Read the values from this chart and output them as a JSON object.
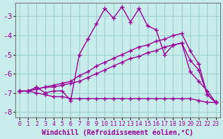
{
  "title": "",
  "xlabel": "Windchill (Refroidissement éolien,°C)",
  "ylabel": "",
  "bg_color": "#c8ecec",
  "grid_color": "#a0d0d0",
  "line_color": "#990099",
  "xlim": [
    -0.5,
    23.5
  ],
  "ylim": [
    -8.3,
    -2.3
  ],
  "yticks": [
    -8,
    -7,
    -6,
    -5,
    -4,
    -3
  ],
  "xticks": [
    0,
    1,
    2,
    3,
    4,
    5,
    6,
    7,
    8,
    9,
    10,
    11,
    12,
    13,
    14,
    15,
    16,
    17,
    18,
    19,
    20,
    21,
    22,
    23
  ],
  "series": [
    {
      "x": [
        0,
        1,
        2,
        3,
        4,
        5,
        6,
        7,
        8,
        9,
        10,
        11,
        12,
        13,
        14,
        15,
        16,
        17,
        18,
        19,
        20,
        21,
        22,
        23
      ],
      "y": [
        -6.9,
        -6.9,
        -6.7,
        -7.0,
        -6.9,
        -6.9,
        -7.4,
        -5.0,
        -4.2,
        -3.4,
        -2.6,
        -3.1,
        -2.5,
        -3.3,
        -2.6,
        -3.5,
        -3.7,
        -5.0,
        -4.5,
        -4.4,
        -5.9,
        -6.4,
        -6.9,
        -7.5
      ]
    },
    {
      "x": [
        0,
        1,
        2,
        3,
        4,
        5,
        6,
        7,
        8,
        9,
        10,
        11,
        12,
        13,
        14,
        15,
        16,
        17,
        18,
        19,
        20,
        21,
        22,
        23
      ],
      "y": [
        -6.9,
        -6.9,
        -6.8,
        -6.7,
        -6.6,
        -6.5,
        -6.4,
        -6.1,
        -5.9,
        -5.6,
        -5.4,
        -5.2,
        -5.0,
        -4.8,
        -4.6,
        -4.5,
        -4.3,
        -4.2,
        -4.0,
        -3.9,
        -4.8,
        -5.5,
        -7.1,
        -7.5
      ]
    },
    {
      "x": [
        0,
        1,
        2,
        3,
        4,
        5,
        6,
        7,
        8,
        9,
        10,
        11,
        12,
        13,
        14,
        15,
        16,
        17,
        18,
        19,
        20,
        21,
        22,
        23
      ],
      "y": [
        -6.9,
        -6.9,
        -6.8,
        -6.7,
        -6.7,
        -6.6,
        -6.5,
        -6.4,
        -6.2,
        -6.0,
        -5.8,
        -5.6,
        -5.4,
        -5.2,
        -5.1,
        -4.9,
        -4.8,
        -4.6,
        -4.5,
        -4.4,
        -5.3,
        -5.8,
        -7.1,
        -7.5
      ]
    },
    {
      "x": [
        0,
        1,
        2,
        3,
        4,
        5,
        6,
        7,
        8,
        9,
        10,
        11,
        12,
        13,
        14,
        15,
        16,
        17,
        18,
        19,
        20,
        21,
        22,
        23
      ],
      "y": [
        -6.9,
        -6.9,
        -7.0,
        -7.1,
        -7.2,
        -7.2,
        -7.3,
        -7.3,
        -7.3,
        -7.3,
        -7.3,
        -7.3,
        -7.3,
        -7.3,
        -7.3,
        -7.3,
        -7.3,
        -7.3,
        -7.3,
        -7.3,
        -7.3,
        -7.4,
        -7.5,
        -7.5
      ]
    }
  ],
  "marker": "+",
  "markersize": 5,
  "linewidth": 1.0,
  "fontsize_xlabel": 7,
  "fontsize_ytick": 8,
  "fontsize_xtick": 6
}
